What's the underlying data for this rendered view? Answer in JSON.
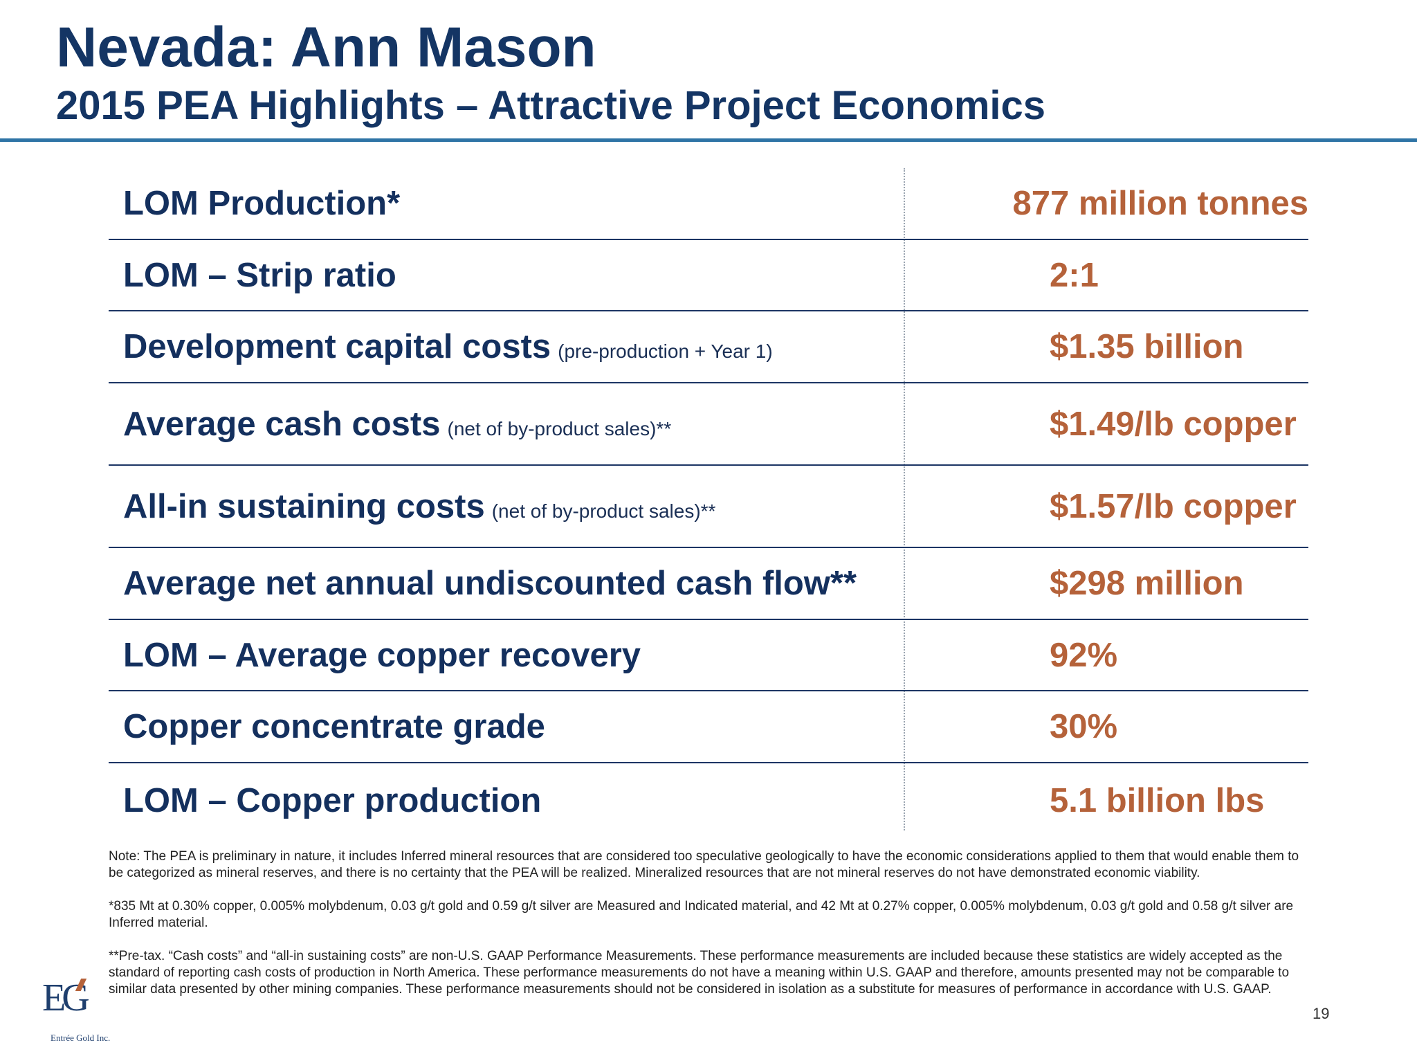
{
  "header": {
    "title": "Nevada: Ann Mason",
    "subtitle": "2015 PEA Highlights – Attractive Project Economics"
  },
  "table": {
    "rows": [
      {
        "label": "LOM Production*",
        "note": "",
        "value": "877 million tonnes"
      },
      {
        "label": "LOM – Strip ratio",
        "note": "",
        "value": "2:1"
      },
      {
        "label": "Development capital costs",
        "note": "(pre-production + Year 1)",
        "value": "$1.35 billion"
      },
      {
        "label": "Average cash costs",
        "note": "(net of by-product sales)**",
        "value": "$1.49/lb copper"
      },
      {
        "label": "All-in sustaining costs",
        "note": "(net of by-product sales)**",
        "value": "$1.57/lb copper"
      },
      {
        "label": "Average net annual undiscounted cash flow**",
        "note": "",
        "value": "$298 million"
      },
      {
        "label": "LOM – Average copper recovery",
        "note": "",
        "value": "92%"
      },
      {
        "label": "Copper concentrate grade",
        "note": "",
        "value": "30%"
      },
      {
        "label": "LOM – Copper production",
        "note": "",
        "value": "5.1 billion lbs"
      }
    ]
  },
  "notes": {
    "note1": "Note: The PEA is preliminary in nature, it includes Inferred mineral resources that are considered too speculative geologically to have the economic considerations  applied to them that would enable them to be categorized as mineral reserves, and there is no certainty that the PEA will be realized. Mineralized resources that are not mineral reserves do not have demonstrated economic viability.",
    "note2": "*835 Mt at 0.30% copper, 0.005% molybdenum, 0.03 g/t gold and 0.59 g/t silver are Measured and Indicated material, and 42 Mt at 0.27% copper, 0.005% molybdenum, 0.03 g/t gold and 0.58 g/t silver are Inferred material.",
    "note3": "**Pre-tax. “Cash costs” and “all-in sustaining costs” are non-U.S. GAAP Performance Measurements.  These performance measurements are included because these statistics are widely accepted as the standard of reporting cash costs of production in North America. These performance measurements do not have a meaning within U.S. GAAP and therefore, amounts presented may not be comparable to similar data presented by other mining companies. These performance measurements should not be considered in isolation as a substitute for measures of performance in accordance with U.S. GAAP."
  },
  "logo": {
    "mark": "EG",
    "company": "Entrée Gold Inc."
  },
  "footer": {
    "page_number": "19"
  },
  "colors": {
    "title": "#143564",
    "label": "#14305e",
    "value": "#b5623a",
    "rule": "#2f74a6"
  }
}
